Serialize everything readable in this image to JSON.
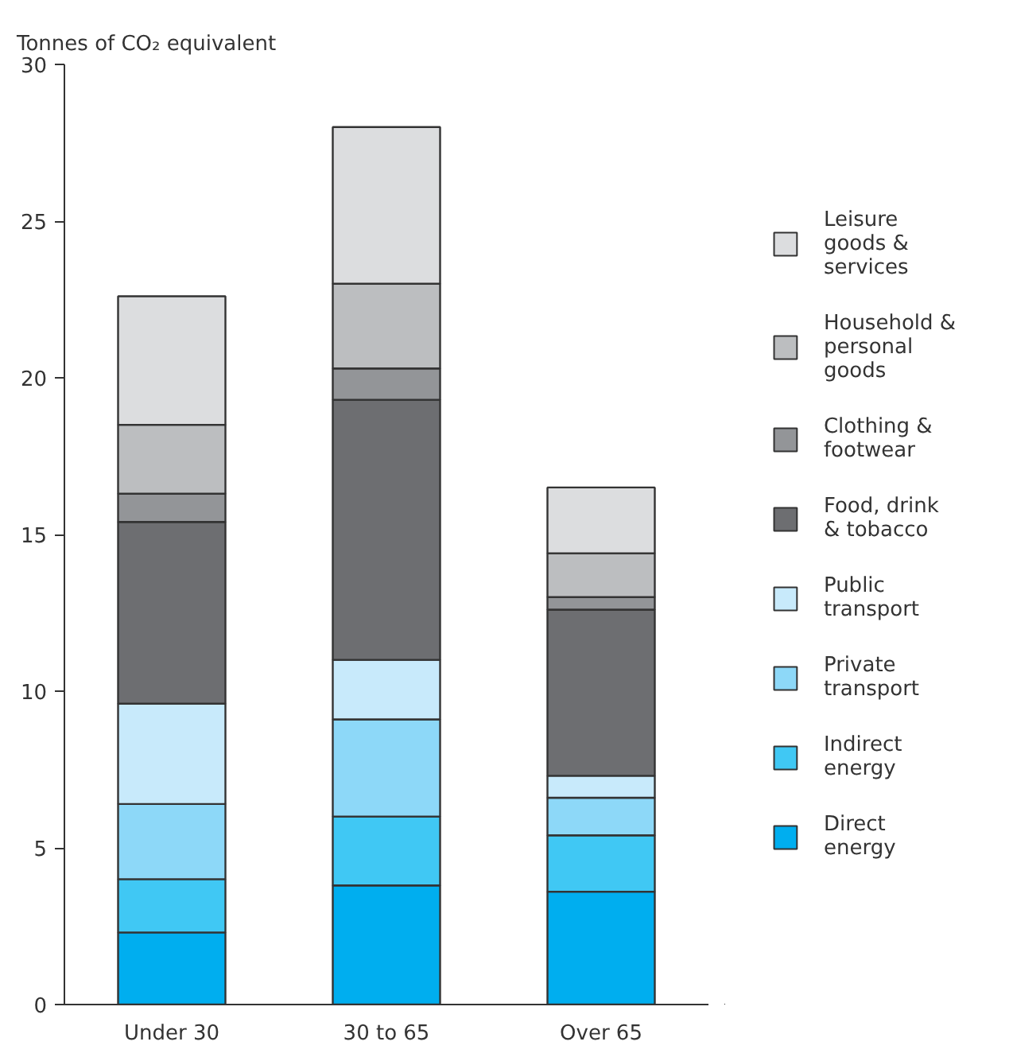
{
  "chart_data": {
    "type": "bar",
    "stacked": true,
    "ylabel": "Tonnes of CO₂ equivalent",
    "categories": [
      "Under 30",
      "30 to 65",
      "Over 65"
    ],
    "ylim": [
      0,
      30
    ],
    "yticks": [
      0,
      5,
      10,
      15,
      20,
      25,
      30
    ],
    "grid": false,
    "legend": "right",
    "series": [
      {
        "name": "Direct energy",
        "color": "#00aeef",
        "values": [
          2.3,
          3.8,
          3.6
        ]
      },
      {
        "name": "Indirect energy",
        "color": "#40c8f4",
        "values": [
          1.7,
          2.2,
          1.8
        ]
      },
      {
        "name": "Private transport",
        "color": "#8dd8f8",
        "values": [
          2.4,
          3.1,
          1.2
        ]
      },
      {
        "name": "Public transport",
        "color": "#c8eafb",
        "values": [
          3.2,
          1.9,
          0.7
        ]
      },
      {
        "name": "Food, drink & tobacco",
        "color": "#6d6e71",
        "values": [
          5.8,
          8.3,
          5.3
        ]
      },
      {
        "name": "Clothing & footwear",
        "color": "#939598",
        "values": [
          0.9,
          1.0,
          0.4
        ]
      },
      {
        "name": "Household & personal goods",
        "color": "#bcbec0",
        "values": [
          2.2,
          2.7,
          1.4
        ]
      },
      {
        "name": "Leisure goods & services",
        "color": "#dcdddf",
        "values": [
          4.1,
          5.0,
          2.1
        ]
      }
    ]
  }
}
